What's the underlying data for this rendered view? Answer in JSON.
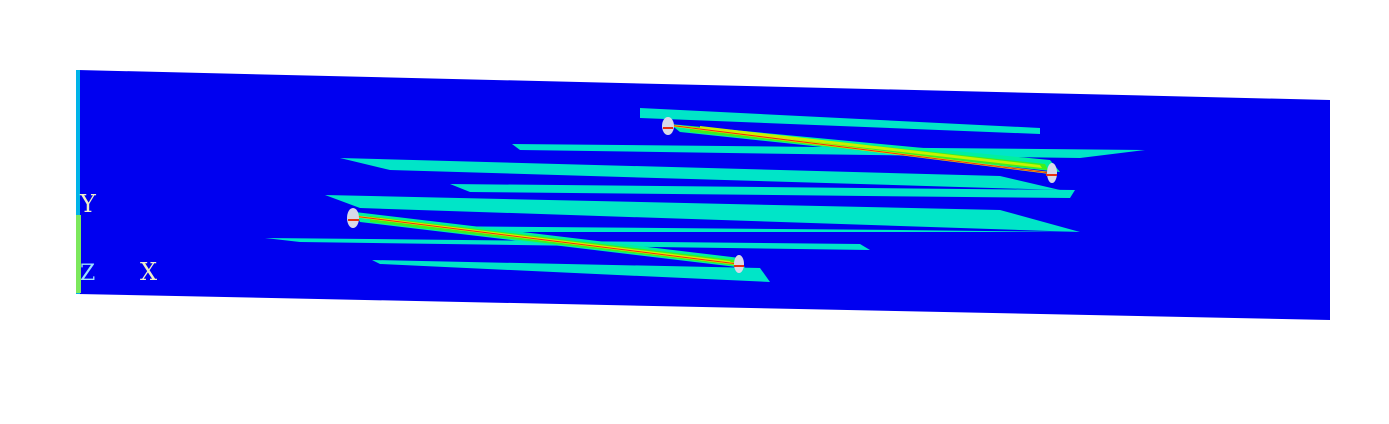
{
  "axes": {
    "y_label": "Y",
    "x_label": "X",
    "z_label": "Z"
  },
  "colors": {
    "background": "#ffffff",
    "body": "#0000f0",
    "body_edge": "#00b4e8",
    "band_outer": "#00e5c8",
    "band_mid": "#00f0a0",
    "band_inner": "#3cf01e",
    "band_core": "#c8f000",
    "crack_hot": "#f5e600",
    "crack_red": "#e83010",
    "tip": "#d8d8e8",
    "triad_text": "#f0f0c8"
  }
}
